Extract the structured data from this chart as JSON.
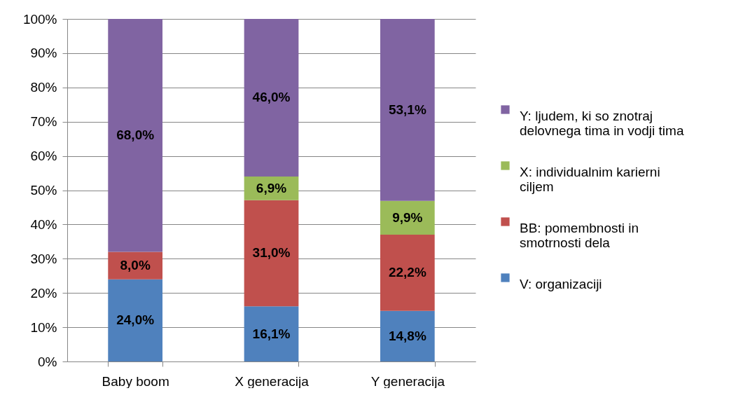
{
  "chart_data": {
    "type": "bar",
    "categories": [
      "Baby boom",
      "X generacija",
      "Y generacija"
    ],
    "stacked": true,
    "series": [
      {
        "name": "V: organizaciji",
        "color": "#4f81bd",
        "values": [
          24.0,
          16.1,
          14.8
        ],
        "value_labels": [
          "24,0%",
          "16,1%",
          "14,8%"
        ]
      },
      {
        "name": "BB: pomembnosti in smotrnosti dela",
        "color": "#c0504d",
        "values": [
          8.0,
          31.0,
          22.2
        ],
        "value_labels": [
          "8,0%",
          "31,0%",
          "22,2%"
        ]
      },
      {
        "name": "X: individualnim karierni ciljem",
        "color": "#9bbb59",
        "values": [
          null,
          6.9,
          9.9
        ],
        "value_labels": [
          null,
          "6,9%",
          "9,9%"
        ]
      },
      {
        "name": "Y: ljudem, ki so znotraj delovnega tima in vodji tima",
        "color": "#8064a2",
        "values": [
          68.0,
          46.0,
          53.1
        ],
        "value_labels": [
          "68,0%",
          "46,0%",
          "53,1%"
        ]
      }
    ],
    "ylim": [
      0,
      100
    ],
    "yticks": [
      {
        "value": 0,
        "label": "0%"
      },
      {
        "value": 10,
        "label": "10%"
      },
      {
        "value": 20,
        "label": "20%"
      },
      {
        "value": 30,
        "label": "30%"
      },
      {
        "value": 40,
        "label": "40%"
      },
      {
        "value": 50,
        "label": "50%"
      },
      {
        "value": 60,
        "label": "60%"
      },
      {
        "value": 70,
        "label": "70%"
      },
      {
        "value": 80,
        "label": "80%"
      },
      {
        "value": 90,
        "label": "90%"
      },
      {
        "value": 100,
        "label": "100%"
      }
    ],
    "grid": "y",
    "legend": "right"
  }
}
